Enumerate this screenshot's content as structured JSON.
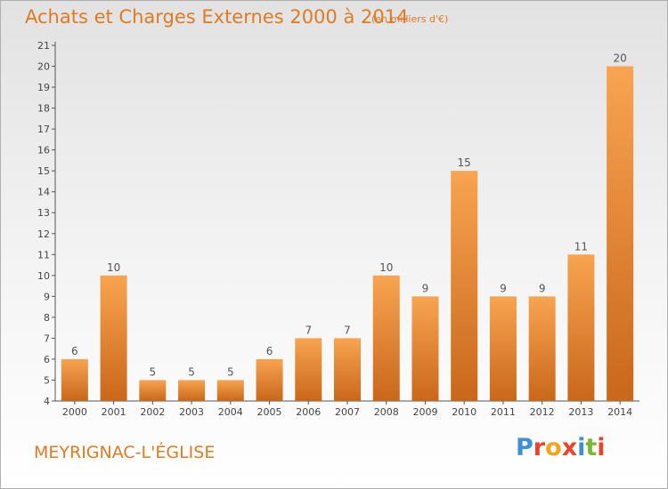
{
  "header": {
    "title": "Achats et Charges Externes 2000 à 2014",
    "subtitle": "(en milliers d'€)"
  },
  "footer": {
    "commune": "MEYRIGNAC-L'ÉGLISE",
    "logo_letters": [
      "P",
      "r",
      "o",
      "x",
      "i",
      "t",
      "i"
    ],
    "logo_colors": [
      "#3d8fd6",
      "#e8452c",
      "#f2a51c",
      "#e8452c",
      "#3d8fd6",
      "#78b833",
      "#e8452c"
    ]
  },
  "chart_data": {
    "type": "bar",
    "categories": [
      "2000",
      "2001",
      "2002",
      "2003",
      "2004",
      "2005",
      "2006",
      "2007",
      "2008",
      "2009",
      "2010",
      "2011",
      "2012",
      "2013",
      "2014"
    ],
    "values": [
      6,
      10,
      5,
      5,
      5,
      6,
      7,
      7,
      10,
      9,
      15,
      9,
      9,
      11,
      20
    ],
    "data_labels": [
      "6",
      "10",
      "5",
      "5",
      "5",
      "6",
      "7",
      "7",
      "10",
      "9",
      "15",
      "9",
      "9",
      "11",
      "20"
    ],
    "yticks": [
      "4",
      "5",
      "6",
      "7",
      "8",
      "9",
      "10",
      "11",
      "12",
      "13",
      "14",
      "15",
      "16",
      "17",
      "18",
      "19",
      "20",
      "21"
    ],
    "ylim": [
      4,
      21
    ],
    "grid": false,
    "bar_color_light": "#f8a451",
    "bar_color_dark": "#c9671a",
    "text_color": "#e07a23"
  }
}
